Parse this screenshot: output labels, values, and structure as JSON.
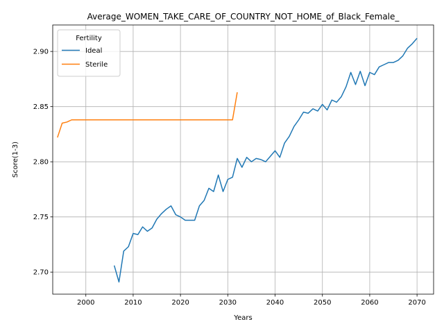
{
  "chart_data": {
    "type": "line",
    "title": "Average_WOMEN_TAKE_CARE_OF_COUNTRY_NOT_HOME_of_Black_Female_",
    "xlabel": "Years",
    "ylabel": "Score(1-3)",
    "xlim": [
      1993,
      2073.5
    ],
    "ylim": [
      2.68,
      2.924
    ],
    "xticks": [
      2000,
      2010,
      2020,
      2030,
      2040,
      2050,
      2060,
      2070
    ],
    "yticks": [
      2.7,
      2.75,
      2.8,
      2.85,
      2.9
    ],
    "xtick_labels": [
      "2000",
      "2010",
      "2020",
      "2030",
      "2040",
      "2050",
      "2060",
      "2070"
    ],
    "ytick_labels": [
      "2.70",
      "2.75",
      "2.80",
      "2.85",
      "2.90"
    ],
    "grid": true,
    "legend": {
      "title": "Fertility",
      "placement": "top-left"
    },
    "series": [
      {
        "name": "Ideal",
        "color": "#1f77b4",
        "x": [
          2006,
          2007,
          2008,
          2009,
          2010,
          2011,
          2012,
          2013,
          2014,
          2015,
          2016,
          2017,
          2018,
          2019,
          2020,
          2021,
          2022,
          2023,
          2024,
          2025,
          2026,
          2027,
          2028,
          2029,
          2030,
          2031,
          2032,
          2033,
          2034,
          2035,
          2036,
          2037,
          2038,
          2039,
          2040,
          2041,
          2042,
          2043,
          2044,
          2045,
          2046,
          2047,
          2048,
          2049,
          2050,
          2051,
          2052,
          2053,
          2054,
          2055,
          2056,
          2057,
          2058,
          2059,
          2060,
          2061,
          2062,
          2063,
          2064,
          2065,
          2066,
          2067,
          2068,
          2069,
          2070
        ],
        "values": [
          2.706,
          2.691,
          2.719,
          2.723,
          2.735,
          2.734,
          2.741,
          2.737,
          2.74,
          2.748,
          2.753,
          2.757,
          2.76,
          2.752,
          2.75,
          2.747,
          2.747,
          2.747,
          2.76,
          2.765,
          2.776,
          2.773,
          2.788,
          2.773,
          2.784,
          2.786,
          2.803,
          2.795,
          2.804,
          2.8,
          2.803,
          2.802,
          2.8,
          2.805,
          2.81,
          2.804,
          2.817,
          2.823,
          2.832,
          2.838,
          2.845,
          2.844,
          2.848,
          2.846,
          2.852,
          2.847,
          2.856,
          2.854,
          2.859,
          2.868,
          2.881,
          2.87,
          2.882,
          2.869,
          2.881,
          2.879,
          2.886,
          2.888,
          2.89,
          2.89,
          2.892,
          2.896,
          2.903,
          2.907,
          2.912
        ]
      },
      {
        "name": "Sterile",
        "color": "#ff7f0e",
        "x": [
          1994,
          1995,
          1996,
          1997,
          1998,
          1999,
          2000,
          2005,
          2010,
          2015,
          2020,
          2025,
          2030,
          2031,
          2032
        ],
        "values": [
          2.822,
          2.835,
          2.836,
          2.838,
          2.838,
          2.838,
          2.838,
          2.838,
          2.838,
          2.838,
          2.838,
          2.838,
          2.838,
          2.838,
          2.863
        ]
      }
    ]
  }
}
